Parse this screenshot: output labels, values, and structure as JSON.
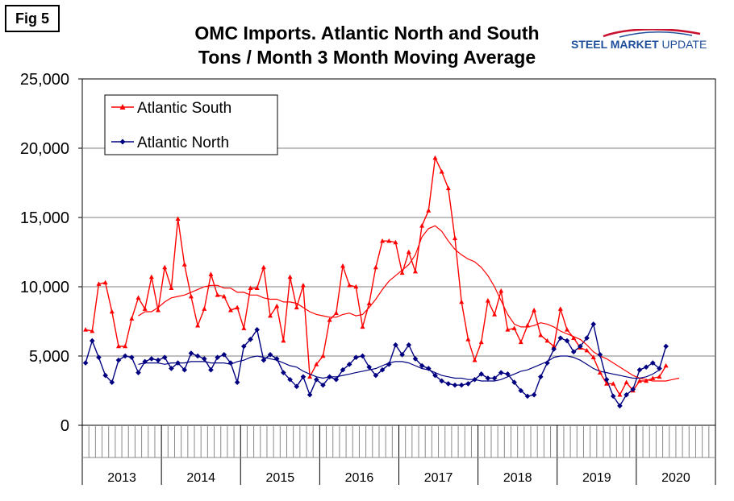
{
  "figure": {
    "label": "Fig 5"
  },
  "title": {
    "line1": "OMC Imports. Atlantic North and South",
    "line2": "Tons / Month 3 Month Moving Average"
  },
  "logo": {
    "text_bold": "STEEL MARKET",
    "text_light": " UPDATE",
    "color": "#1f4e9a"
  },
  "chart_data": {
    "type": "line",
    "title": "OMC Imports. Atlantic North and South Tons / Month 3 Month Moving Average",
    "xlabel": "",
    "ylabel": "",
    "ylim": [
      0,
      25000
    ],
    "yticks": [
      0,
      5000,
      10000,
      15000,
      20000,
      25000
    ],
    "ytick_labels": [
      "0",
      "5,000",
      "10,000",
      "15,000",
      "20,000",
      "25,000"
    ],
    "years": [
      "2013",
      "2014",
      "2015",
      "2016",
      "2017",
      "2018",
      "2019",
      "2020"
    ],
    "months_total": 96,
    "grid": true,
    "legend": {
      "placement": "top-left",
      "entries": [
        "Atlantic South",
        "Atlantic North"
      ]
    },
    "series": [
      {
        "name": "Atlantic South",
        "color": "#ff0000",
        "marker": "triangle",
        "values": [
          6900,
          6800,
          10200,
          10300,
          8200,
          5700,
          5700,
          7700,
          9200,
          8400,
          10700,
          8300,
          11400,
          9900,
          14900,
          11600,
          9300,
          7200,
          8400,
          10900,
          9400,
          9300,
          8300,
          8500,
          7000,
          9900,
          9900,
          11400,
          7900,
          8600,
          6100,
          10700,
          8500,
          10100,
          3500,
          4400,
          5000,
          7600,
          8100,
          11500,
          10100,
          10000,
          7100,
          8800,
          11400,
          13300,
          13300,
          13200,
          11000,
          12500,
          11100,
          14400,
          15500,
          19300,
          18300,
          17100,
          13500,
          8900,
          6200,
          4700,
          6000,
          9000,
          8000,
          9700,
          6900,
          7000,
          6000,
          7200,
          8300,
          6500,
          6100,
          5700,
          8400,
          6900,
          6300,
          5600,
          5400,
          4900,
          3800,
          3000,
          3000,
          2200,
          3100,
          2500,
          3200,
          3200,
          3400,
          3500,
          4300
        ]
      },
      {
        "name": "Atlantic North",
        "color": "#000080",
        "marker": "diamond",
        "values": [
          4500,
          6100,
          4900,
          3600,
          3100,
          4700,
          5000,
          4900,
          3800,
          4600,
          4800,
          4700,
          4900,
          4100,
          4500,
          4000,
          5200,
          5000,
          4800,
          4000,
          4900,
          5100,
          4500,
          3100,
          5700,
          6200,
          6900,
          4700,
          5100,
          4800,
          3800,
          3300,
          2800,
          3500,
          2200,
          3300,
          2900,
          3500,
          3300,
          4000,
          4400,
          4900,
          5000,
          4200,
          3600,
          4000,
          4400,
          5800,
          5100,
          5800,
          4800,
          4300,
          4100,
          3600,
          3200,
          3000,
          2900,
          2900,
          3000,
          3300,
          3700,
          3400,
          3400,
          3800,
          3700,
          3100,
          2500,
          2100,
          2200,
          3500,
          4500,
          5500,
          6300,
          6100,
          5300,
          5700,
          6300,
          7300,
          5100,
          3300,
          2100,
          1400,
          2200,
          2600,
          4000,
          4200,
          4500,
          4100,
          5700
        ]
      },
      {
        "name": "Atlantic South Moving Average",
        "color": "#ff0000",
        "marker": "none",
        "start_index": 8,
        "values": [
          7900,
          8200,
          8200,
          8500,
          8900,
          9200,
          9300,
          9400,
          9600,
          9800,
          10000,
          10100,
          10100,
          9900,
          9900,
          9600,
          9600,
          9400,
          9400,
          9200,
          9100,
          9100,
          8900,
          8900,
          8800,
          8500,
          8200,
          8000,
          7900,
          7800,
          7800,
          8000,
          8100,
          7900,
          8000,
          8500,
          9100,
          9800,
          10400,
          10800,
          11200,
          11600,
          12300,
          13600,
          14200,
          14400,
          14000,
          13300,
          12700,
          12300,
          12000,
          11800,
          11400,
          10800,
          10000,
          9000,
          8000,
          7300,
          7100,
          7100,
          7200,
          7400,
          7300,
          7100,
          6800,
          6600,
          6400,
          6200,
          5800,
          5300,
          5000,
          4800,
          4500,
          4200,
          3900,
          3600,
          3400,
          3300,
          3200,
          3200,
          3200,
          3300,
          3400
        ]
      },
      {
        "name": "Atlantic North Moving Average",
        "color": "#000080",
        "marker": "none",
        "start_index": 8,
        "values": [
          4400,
          4500,
          4500,
          4500,
          4400,
          4500,
          4500,
          4500,
          4600,
          4600,
          4600,
          4500,
          4500,
          4500,
          4400,
          4600,
          4700,
          4900,
          5000,
          4900,
          4800,
          4700,
          4500,
          4300,
          4200,
          3900,
          3700,
          3500,
          3400,
          3500,
          3500,
          3600,
          3700,
          3800,
          3900,
          4000,
          4100,
          4300,
          4500,
          4600,
          4600,
          4500,
          4300,
          4100,
          4000,
          3800,
          3600,
          3500,
          3400,
          3400,
          3300,
          3300,
          3200,
          3200,
          3200,
          3300,
          3500,
          3700,
          3900,
          4000,
          4200,
          4400,
          4600,
          4900,
          5000,
          5000,
          4900,
          4700,
          4400,
          4100,
          3900,
          3800,
          3700,
          3600,
          3500,
          3400,
          3400,
          3500,
          3700,
          4000
        ]
      }
    ]
  }
}
